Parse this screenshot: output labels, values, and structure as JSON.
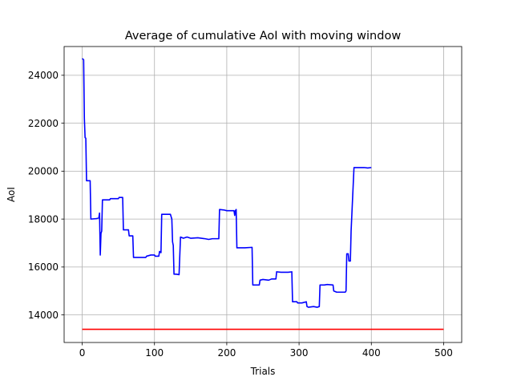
{
  "chart_data": {
    "type": "line",
    "title": "Average of cumulative AoI with moving window",
    "xlabel": "Trials",
    "ylabel": "AoI",
    "xlim": [
      -25,
      525
    ],
    "ylim": [
      12850,
      25200
    ],
    "xticks": [
      0,
      100,
      200,
      300,
      400,
      500
    ],
    "yticks": [
      14000,
      16000,
      18000,
      20000,
      22000,
      24000
    ],
    "grid": true,
    "series": [
      {
        "color": "#0000ff",
        "points": [
          [
            0,
            24700
          ],
          [
            2,
            24650
          ],
          [
            3,
            22200
          ],
          [
            4,
            21400
          ],
          [
            5,
            21380
          ],
          [
            6,
            19600
          ],
          [
            7,
            19600
          ],
          [
            11,
            19600
          ],
          [
            12,
            18000
          ],
          [
            20,
            18020
          ],
          [
            23,
            18050
          ],
          [
            24,
            18250
          ],
          [
            25,
            16500
          ],
          [
            26,
            17400
          ],
          [
            27,
            17500
          ],
          [
            28,
            18800
          ],
          [
            38,
            18800
          ],
          [
            39,
            18850
          ],
          [
            50,
            18850
          ],
          [
            51,
            18900
          ],
          [
            56,
            18900
          ],
          [
            57,
            17550
          ],
          [
            64,
            17550
          ],
          [
            65,
            17300
          ],
          [
            70,
            17300
          ],
          [
            71,
            16400
          ],
          [
            88,
            16400
          ],
          [
            89,
            16450
          ],
          [
            95,
            16500
          ],
          [
            100,
            16500
          ],
          [
            101,
            16450
          ],
          [
            106,
            16450
          ],
          [
            107,
            16650
          ],
          [
            109,
            16600
          ],
          [
            110,
            18200
          ],
          [
            122,
            18200
          ],
          [
            124,
            18000
          ],
          [
            125,
            17050
          ],
          [
            126,
            16900
          ],
          [
            127,
            15700
          ],
          [
            130,
            15700
          ],
          [
            134,
            15680
          ],
          [
            136,
            17250
          ],
          [
            140,
            17200
          ],
          [
            145,
            17250
          ],
          [
            150,
            17200
          ],
          [
            160,
            17220
          ],
          [
            170,
            17180
          ],
          [
            175,
            17150
          ],
          [
            180,
            17180
          ],
          [
            189,
            17180
          ],
          [
            190,
            18400
          ],
          [
            196,
            18380
          ],
          [
            200,
            18350
          ],
          [
            210,
            18350
          ],
          [
            211,
            18150
          ],
          [
            212,
            18350
          ],
          [
            213,
            18400
          ],
          [
            214,
            16800
          ],
          [
            225,
            16800
          ],
          [
            235,
            16820
          ],
          [
            236,
            15250
          ],
          [
            245,
            15250
          ],
          [
            246,
            15450
          ],
          [
            250,
            15480
          ],
          [
            258,
            15450
          ],
          [
            262,
            15500
          ],
          [
            268,
            15500
          ],
          [
            269,
            15800
          ],
          [
            275,
            15780
          ],
          [
            285,
            15780
          ],
          [
            290,
            15800
          ],
          [
            291,
            14550
          ],
          [
            297,
            14550
          ],
          [
            298,
            14500
          ],
          [
            304,
            14500
          ],
          [
            310,
            14550
          ],
          [
            311,
            14350
          ],
          [
            313,
            14320
          ],
          [
            320,
            14350
          ],
          [
            325,
            14320
          ],
          [
            328,
            14350
          ],
          [
            329,
            15250
          ],
          [
            335,
            15250
          ],
          [
            339,
            15270
          ],
          [
            347,
            15250
          ],
          [
            348,
            15000
          ],
          [
            352,
            14950
          ],
          [
            356,
            14950
          ],
          [
            364,
            14950
          ],
          [
            365,
            15000
          ],
          [
            366,
            16550
          ],
          [
            368,
            16550
          ],
          [
            369,
            16250
          ],
          [
            371,
            16250
          ],
          [
            372,
            17500
          ],
          [
            376,
            20150
          ],
          [
            385,
            20150
          ],
          [
            390,
            20150
          ],
          [
            395,
            20130
          ],
          [
            400,
            20150
          ]
        ]
      },
      {
        "color": "#ff0000",
        "points": [
          [
            0,
            13400
          ],
          [
            500,
            13400
          ]
        ]
      }
    ]
  }
}
